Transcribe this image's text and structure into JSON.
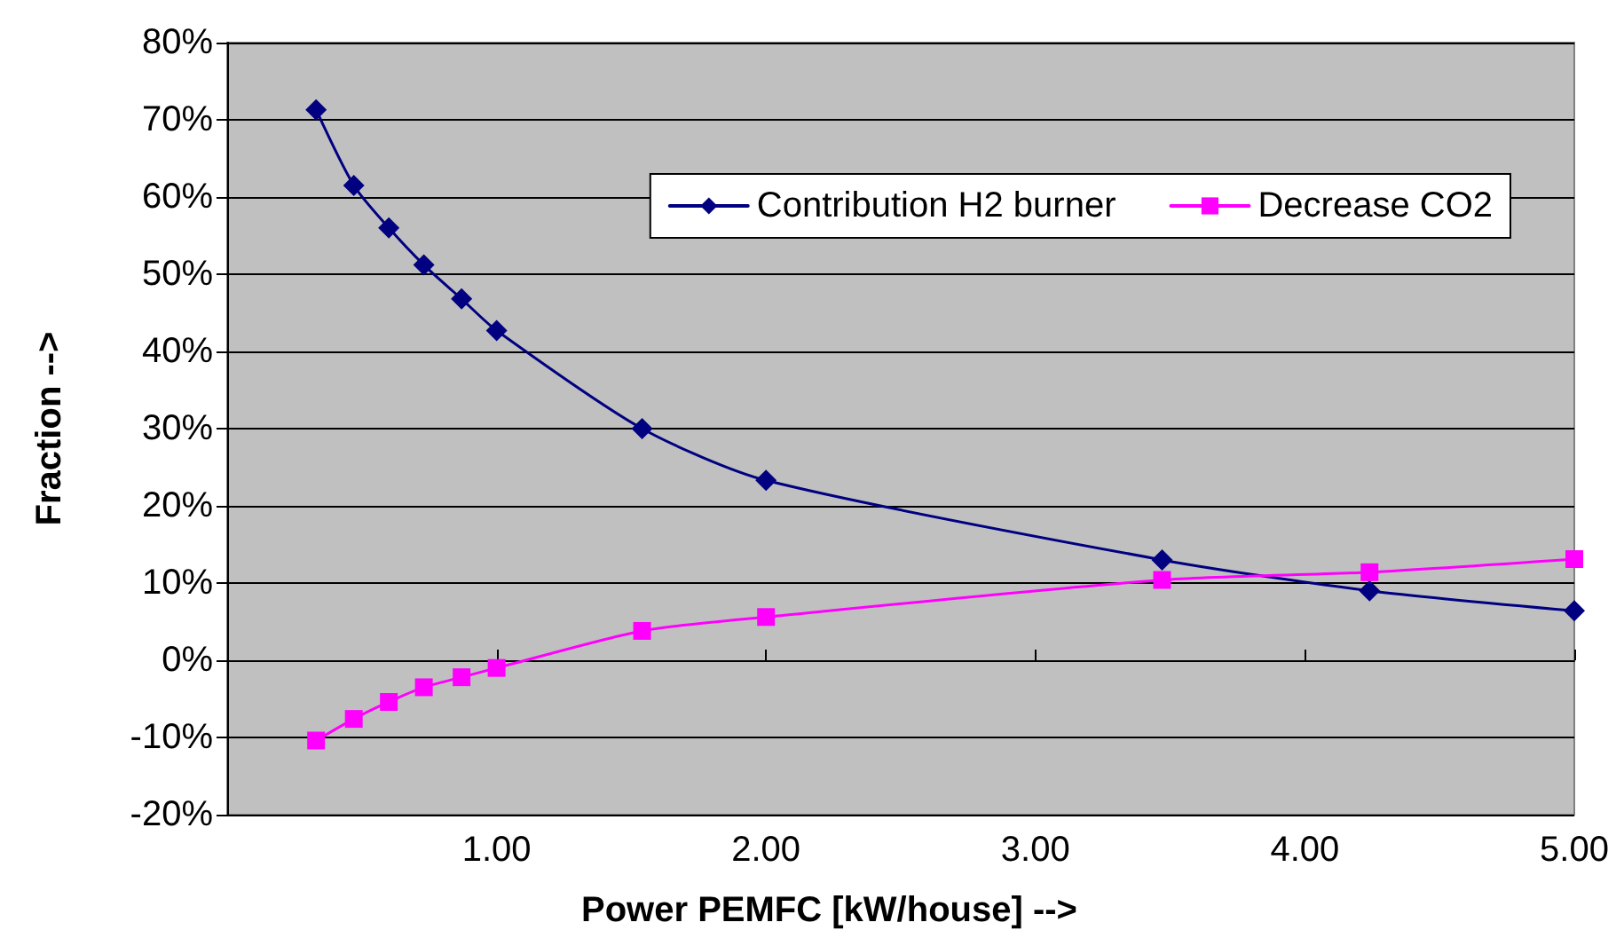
{
  "chart_data": {
    "type": "line",
    "xlabel": "Power PEMFC [kW/house] -->",
    "ylabel": "Fraction -->",
    "xlim": [
      0,
      5
    ],
    "xticks": [
      {
        "value": 1,
        "label": "1.00"
      },
      {
        "value": 2,
        "label": "2.00"
      },
      {
        "value": 3,
        "label": "3.00"
      },
      {
        "value": 4,
        "label": "4.00"
      },
      {
        "value": 5,
        "label": "5.00"
      }
    ],
    "ylim": [
      -20,
      80
    ],
    "yticks": [
      {
        "value": -20,
        "label": "-20%"
      },
      {
        "value": -10,
        "label": "-10%"
      },
      {
        "value": 0,
        "label": "0%"
      },
      {
        "value": 10,
        "label": "10%"
      },
      {
        "value": 20,
        "label": "20%"
      },
      {
        "value": 30,
        "label": "30%"
      },
      {
        "value": 40,
        "label": "40%"
      },
      {
        "value": 50,
        "label": "50%"
      },
      {
        "value": 60,
        "label": "60%"
      },
      {
        "value": 70,
        "label": "70%"
      },
      {
        "value": 80,
        "label": "80%"
      }
    ],
    "grid": "y",
    "legend": "top right",
    "series": [
      {
        "name": "Contribution H2 burner",
        "color": "#000080",
        "marker": "diamond",
        "x": [
          0.33,
          0.47,
          0.6,
          0.73,
          0.87,
          1,
          1.54,
          2,
          3.47,
          4.24,
          5
        ],
        "values": [
          71.3,
          61.5,
          56,
          51.2,
          46.8,
          42.7,
          30,
          23.3,
          13,
          9,
          6.4
        ]
      },
      {
        "name": "Decrease CO2",
        "color": "#ff00ff",
        "marker": "square",
        "x": [
          0.33,
          0.47,
          0.6,
          0.73,
          0.87,
          1,
          1.54,
          2,
          3.47,
          4.24,
          5
        ],
        "values": [
          -10.4,
          -7.6,
          -5.4,
          -3.5,
          -2.2,
          -1,
          3.8,
          5.6,
          10.4,
          11.4,
          13.1
        ]
      }
    ]
  }
}
